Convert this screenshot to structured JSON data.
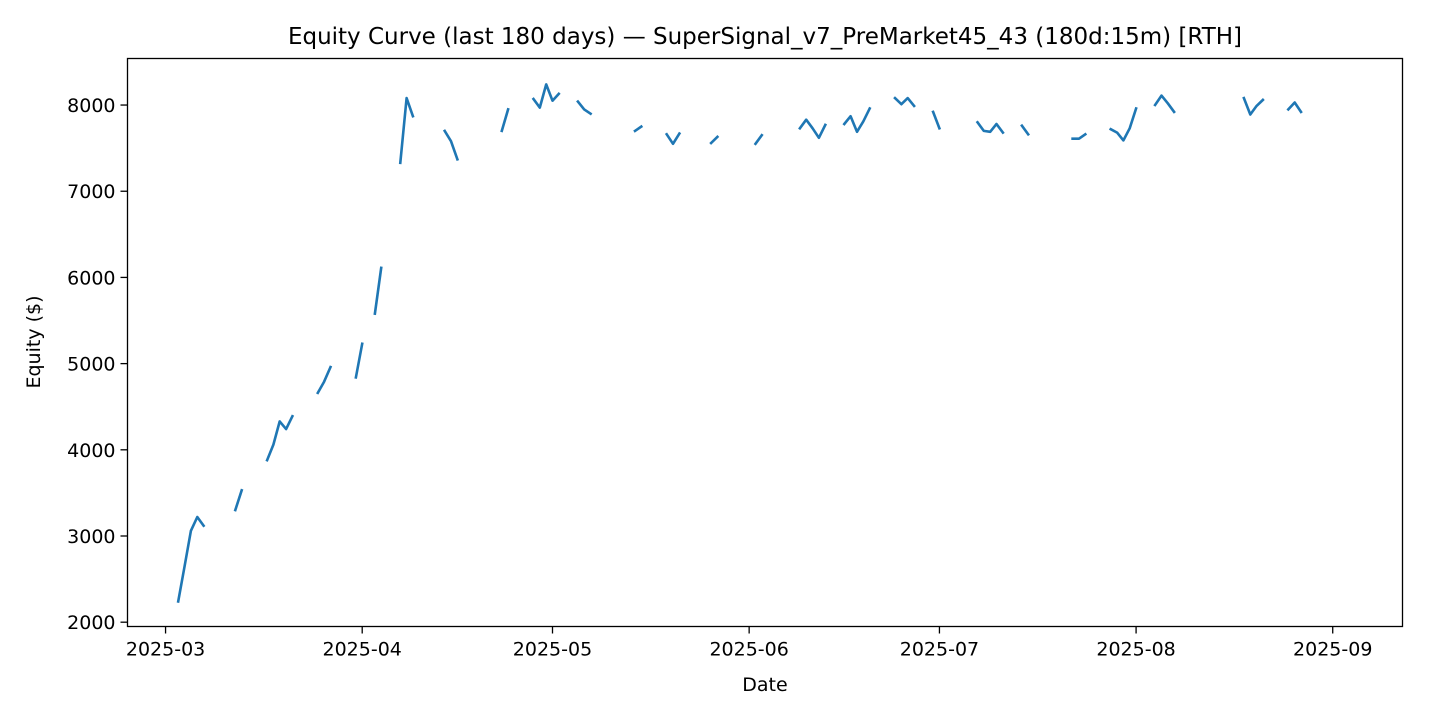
{
  "chart_data": {
    "type": "line",
    "title": "Equity Curve (last 180 days) — SuperSignal_v7_PreMarket45_43 (180d:15m) [RTH]",
    "xlabel": "Date",
    "ylabel": "Equity ($)",
    "x_ticks": [
      "2025-03",
      "2025-04",
      "2025-05",
      "2025-06",
      "2025-07",
      "2025-08",
      "2025-09"
    ],
    "y_ticks": [
      2000,
      3000,
      4000,
      5000,
      6000,
      7000,
      8000
    ],
    "xlim": [
      "2025-02-23",
      "2025-09-12"
    ],
    "ylim": [
      1950,
      8540
    ],
    "grid": false,
    "legend": "none",
    "series_color": "#1f77b4",
    "series": [
      {
        "segments": [
          [
            [
              "2025-03-03",
              2240
            ],
            [
              "2025-03-04",
              2650
            ],
            [
              "2025-03-05",
              3060
            ],
            [
              "2025-03-06",
              3220
            ],
            [
              "2025-03-07",
              3120
            ]
          ],
          [
            [
              "2025-03-12",
              3300
            ],
            [
              "2025-03-13",
              3530
            ]
          ],
          [
            [
              "2025-03-17",
              3880
            ],
            [
              "2025-03-18",
              4060
            ],
            [
              "2025-03-19",
              4330
            ],
            [
              "2025-03-20",
              4240
            ],
            [
              "2025-03-21",
              4390
            ]
          ],
          [
            [
              "2025-03-25",
              4660
            ],
            [
              "2025-03-26",
              4790
            ],
            [
              "2025-03-27",
              4960
            ]
          ],
          [
            [
              "2025-03-31",
              4840
            ],
            [
              "2025-04-01",
              5230
            ]
          ],
          [
            [
              "2025-04-03",
              5580
            ],
            [
              "2025-04-04",
              6110
            ]
          ],
          [
            [
              "2025-04-07",
              7330
            ],
            [
              "2025-04-08",
              8080
            ],
            [
              "2025-04-09",
              7870
            ]
          ],
          [
            [
              "2025-04-14",
              7700
            ],
            [
              "2025-04-15",
              7580
            ],
            [
              "2025-04-16",
              7370
            ]
          ],
          [
            [
              "2025-04-23",
              7700
            ],
            [
              "2025-04-24",
              7950
            ]
          ],
          [
            [
              "2025-04-28",
              8070
            ],
            [
              "2025-04-29",
              7970
            ],
            [
              "2025-04-30",
              8240
            ],
            [
              "2025-05-01",
              8050
            ],
            [
              "2025-05-02",
              8130
            ]
          ],
          [
            [
              "2025-05-05",
              8040
            ],
            [
              "2025-05-06",
              7950
            ],
            [
              "2025-05-07",
              7900
            ]
          ],
          [
            [
              "2025-05-14",
              7700
            ],
            [
              "2025-05-15",
              7750
            ]
          ],
          [
            [
              "2025-05-19",
              7660
            ],
            [
              "2025-05-20",
              7550
            ],
            [
              "2025-05-21",
              7670
            ]
          ],
          [
            [
              "2025-05-26",
              7560
            ],
            [
              "2025-05-27",
              7630
            ]
          ],
          [
            [
              "2025-06-02",
              7550
            ],
            [
              "2025-06-03",
              7650
            ]
          ],
          [
            [
              "2025-06-09",
              7730
            ],
            [
              "2025-06-10",
              7830
            ],
            [
              "2025-06-11",
              7730
            ],
            [
              "2025-06-12",
              7620
            ],
            [
              "2025-06-13",
              7770
            ]
          ],
          [
            [
              "2025-06-16",
              7780
            ],
            [
              "2025-06-17",
              7870
            ],
            [
              "2025-06-18",
              7690
            ],
            [
              "2025-06-19",
              7810
            ],
            [
              "2025-06-20",
              7960
            ]
          ],
          [
            [
              "2025-06-24",
              8080
            ],
            [
              "2025-06-25",
              8010
            ],
            [
              "2025-06-26",
              8080
            ],
            [
              "2025-06-27",
              7990
            ]
          ],
          [
            [
              "2025-06-30",
              7920
            ],
            [
              "2025-07-01",
              7730
            ]
          ],
          [
            [
              "2025-07-07",
              7800
            ],
            [
              "2025-07-08",
              7700
            ],
            [
              "2025-07-09",
              7690
            ],
            [
              "2025-07-10",
              7780
            ],
            [
              "2025-07-11",
              7680
            ]
          ],
          [
            [
              "2025-07-14",
              7760
            ],
            [
              "2025-07-15",
              7660
            ]
          ],
          [
            [
              "2025-07-22",
              7610
            ],
            [
              "2025-07-23",
              7610
            ],
            [
              "2025-07-24",
              7660
            ]
          ],
          [
            [
              "2025-07-28",
              7720
            ],
            [
              "2025-07-29",
              7680
            ],
            [
              "2025-07-30",
              7590
            ],
            [
              "2025-07-31",
              7730
            ],
            [
              "2025-08-01",
              7960
            ]
          ],
          [
            [
              "2025-08-04",
              8000
            ],
            [
              "2025-08-05",
              8110
            ],
            [
              "2025-08-06",
              8020
            ],
            [
              "2025-08-07",
              7920
            ]
          ],
          [
            [
              "2025-08-18",
              8080
            ],
            [
              "2025-08-19",
              7890
            ],
            [
              "2025-08-20",
              7990
            ],
            [
              "2025-08-21",
              8060
            ]
          ],
          [
            [
              "2025-08-25",
              7950
            ],
            [
              "2025-08-26",
              8030
            ],
            [
              "2025-08-27",
              7920
            ]
          ]
        ]
      }
    ]
  }
}
